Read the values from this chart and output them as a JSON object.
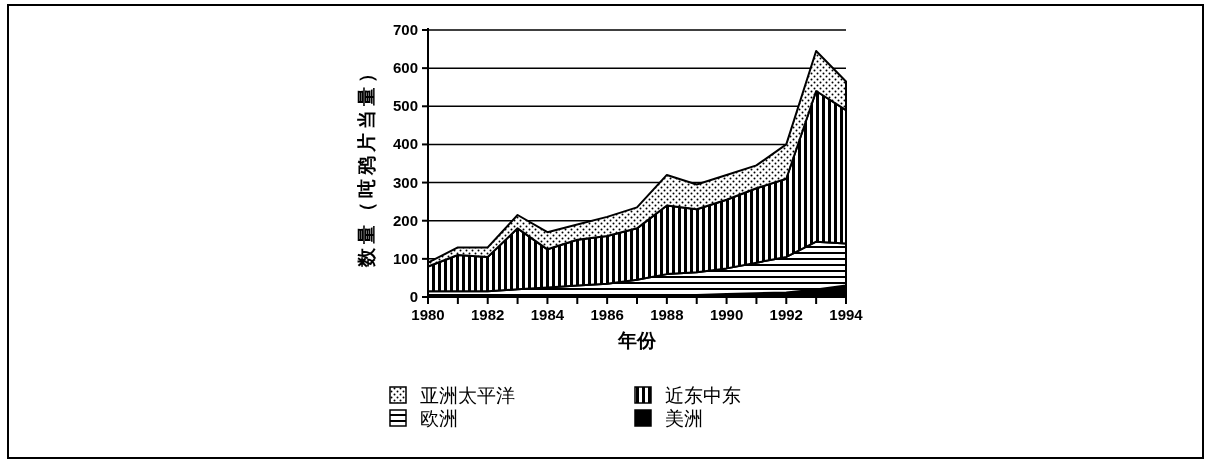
{
  "chart_data": {
    "type": "area",
    "stacked": true,
    "xlabel": "年份",
    "ylabel": "数量（吨鸦片当量）",
    "x": [
      1980,
      1981,
      1982,
      1983,
      1984,
      1985,
      1986,
      1987,
      1988,
      1989,
      1990,
      1991,
      1992,
      1993,
      1994
    ],
    "xlim": [
      1980,
      1994
    ],
    "xticks": [
      1980,
      {
        "value": 1981,
        "label": null
      },
      1982,
      {
        "value": 1983,
        "label": null
      },
      1984,
      {
        "value": 1985,
        "label": null
      },
      1986,
      {
        "value": 1987,
        "label": null
      },
      1988,
      {
        "value": 1989,
        "label": null
      },
      1990,
      {
        "value": 1991,
        "label": null
      },
      1992,
      {
        "value": 1993,
        "label": null
      },
      1994
    ],
    "ylim": [
      0,
      700
    ],
    "yticks": [
      0,
      100,
      200,
      300,
      400,
      500,
      600,
      700
    ],
    "grid": "y",
    "legend": "bottom",
    "series": [
      {
        "name": "美洲",
        "color": "#000000",
        "values": [
          0,
          0,
          0,
          0,
          0,
          0,
          0,
          0,
          5,
          5,
          8,
          10,
          12,
          20,
          30
        ]
      },
      {
        "name": "欧洲",
        "color": "#000000",
        "values": [
          15,
          15,
          15,
          20,
          25,
          30,
          35,
          45,
          55,
          60,
          67,
          80,
          93,
          125,
          110
        ]
      },
      {
        "name": "近东中东",
        "color": "#000000",
        "values": [
          65,
          95,
          90,
          160,
          100,
          120,
          125,
          135,
          180,
          165,
          180,
          195,
          205,
          395,
          350
        ]
      },
      {
        "name": "亚洲太平洋",
        "color": "#000000",
        "values": [
          10,
          20,
          25,
          35,
          45,
          40,
          50,
          55,
          80,
          65,
          65,
          60,
          90,
          105,
          75
        ]
      }
    ]
  }
}
